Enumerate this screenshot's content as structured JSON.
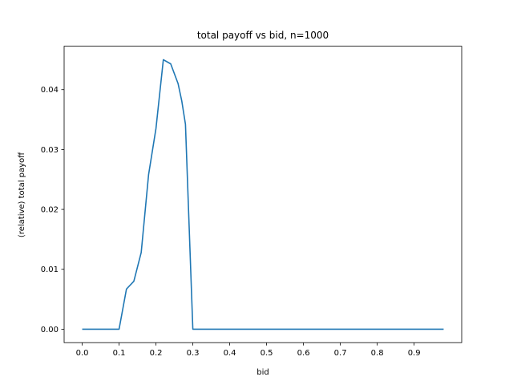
{
  "chart_data": {
    "type": "line",
    "title": "total payoff vs bid, n=1000",
    "xlabel": "bid",
    "ylabel": "(relative) total payoff",
    "xlim": [
      -0.049,
      1.029
    ],
    "ylim": [
      -0.00225,
      0.04725
    ],
    "xticks": [
      0.0,
      0.1,
      0.2,
      0.3,
      0.4,
      0.5,
      0.6,
      0.7,
      0.8,
      0.9
    ],
    "xtick_labels": [
      "0.0",
      "0.1",
      "0.2",
      "0.3",
      "0.4",
      "0.5",
      "0.6",
      "0.7",
      "0.8",
      "0.9"
    ],
    "yticks": [
      0.0,
      0.01,
      0.02,
      0.03,
      0.04
    ],
    "ytick_labels": [
      "0.00",
      "0.01",
      "0.02",
      "0.03",
      "0.04"
    ],
    "grid": false,
    "series": [
      {
        "color": "#1f77b4",
        "x": [
          0.0,
          0.02,
          0.04,
          0.06,
          0.08,
          0.1,
          0.12,
          0.14,
          0.16,
          0.18,
          0.2,
          0.22,
          0.24,
          0.26,
          0.27,
          0.28,
          0.3,
          0.32,
          0.4,
          0.5,
          0.6,
          0.7,
          0.8,
          0.9,
          0.98
        ],
        "y": [
          0.0,
          0.0,
          0.0,
          0.0,
          0.0,
          0.0,
          0.0067,
          0.008,
          0.0128,
          0.0258,
          0.0335,
          0.045,
          0.0443,
          0.041,
          0.0381,
          0.0342,
          0.0,
          0.0,
          0.0,
          0.0,
          0.0,
          0.0,
          0.0,
          0.0,
          0.0
        ]
      }
    ]
  }
}
